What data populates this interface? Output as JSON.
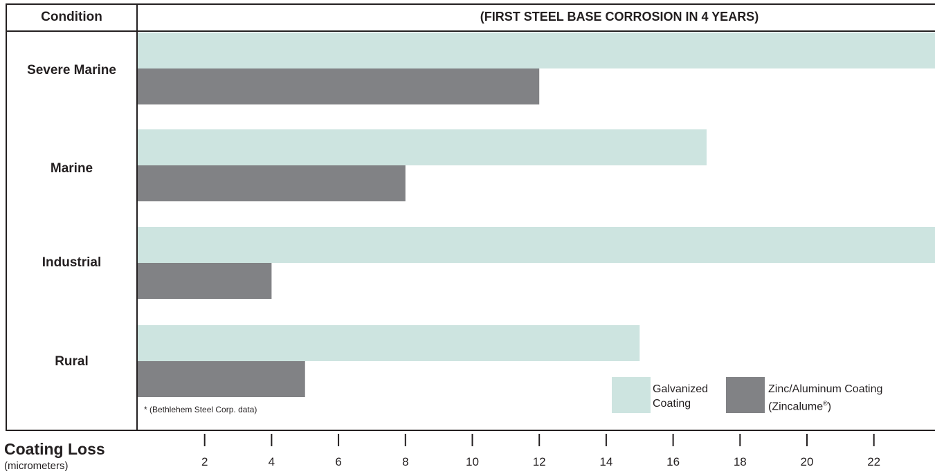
{
  "chart_data": {
    "type": "bar",
    "orientation": "horizontal",
    "title": "(FIRST STEEL BASE CORROSION IN 4 YEARS)",
    "category_header": "Condition",
    "categories": [
      "Severe Marine",
      "Marine",
      "Industrial",
      "Rural"
    ],
    "series": [
      {
        "name": "Galvanized Coating",
        "values": [
          24,
          17,
          24,
          15
        ],
        "color": "#cde4e0"
      },
      {
        "name": "Zinc/Aluminum Coating (Zincalume®)",
        "values": [
          12,
          8,
          4,
          5
        ],
        "color": "#818285"
      }
    ],
    "xlabel": "Coating Loss",
    "xlabel_unit": "(micrometers)",
    "xticks": [
      2,
      4,
      6,
      8,
      10,
      12,
      14,
      16,
      18,
      20,
      22
    ],
    "xlim": [
      0,
      24
    ],
    "legend_position": "bottom-right",
    "grid": false
  },
  "legend": {
    "galvanized_line1": "Galvanized",
    "galvanized_line2": "Coating",
    "zincalume_line1": "Zinc/Aluminum Coating",
    "zincalume_line2": "(Zincalume",
    "zincalume_reg": "®",
    "zincalume_close": ")"
  },
  "footnote": "* (Bethlehem Steel Corp. data)"
}
